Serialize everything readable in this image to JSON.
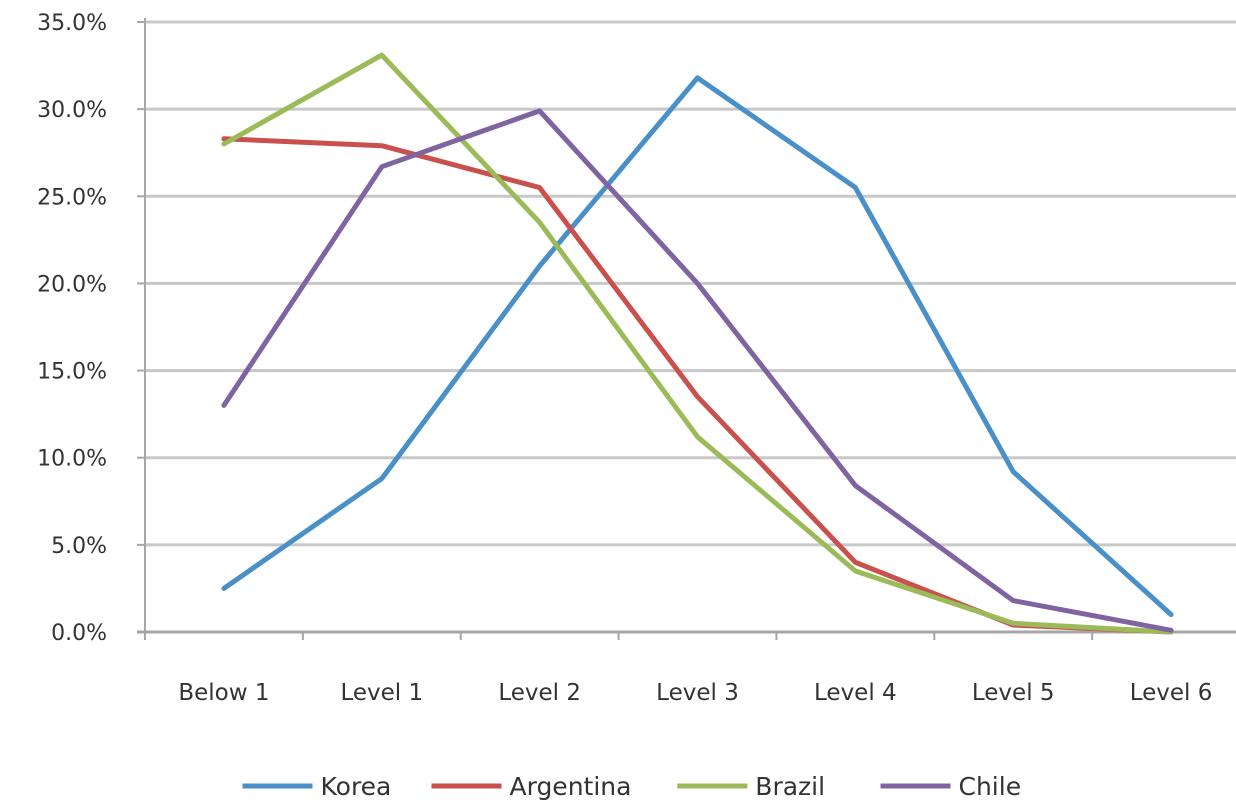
{
  "chart_data": {
    "type": "line",
    "title": "",
    "xlabel": "",
    "ylabel": "",
    "categories": [
      "Below 1",
      "Level 1",
      "Level 2",
      "Level 3",
      "Level 4",
      "Level 5",
      "Level 6"
    ],
    "ylim": [
      0,
      35
    ],
    "yticks": [
      0,
      5,
      10,
      15,
      20,
      25,
      30,
      35
    ],
    "ytick_labels": [
      "0.0%",
      "5.0%",
      "10.0%",
      "15.0%",
      "20.0%",
      "25.0%",
      "30.0%",
      "35.0%"
    ],
    "grid": true,
    "legend_position": "bottom",
    "series": [
      {
        "name": "Korea",
        "color": "#4a90c8",
        "values": [
          2.5,
          8.8,
          21.0,
          31.8,
          25.5,
          9.2,
          1.0
        ]
      },
      {
        "name": "Argentina",
        "color": "#c9504c",
        "values": [
          28.3,
          27.9,
          25.5,
          13.5,
          4.0,
          0.4,
          0.0
        ]
      },
      {
        "name": "Brazil",
        "color": "#9bbb59",
        "values": [
          28.0,
          33.1,
          23.5,
          11.2,
          3.5,
          0.5,
          0.0
        ]
      },
      {
        "name": "Chile",
        "color": "#8064a2",
        "values": [
          13.0,
          26.7,
          29.9,
          20.0,
          8.4,
          1.8,
          0.1
        ]
      }
    ]
  }
}
